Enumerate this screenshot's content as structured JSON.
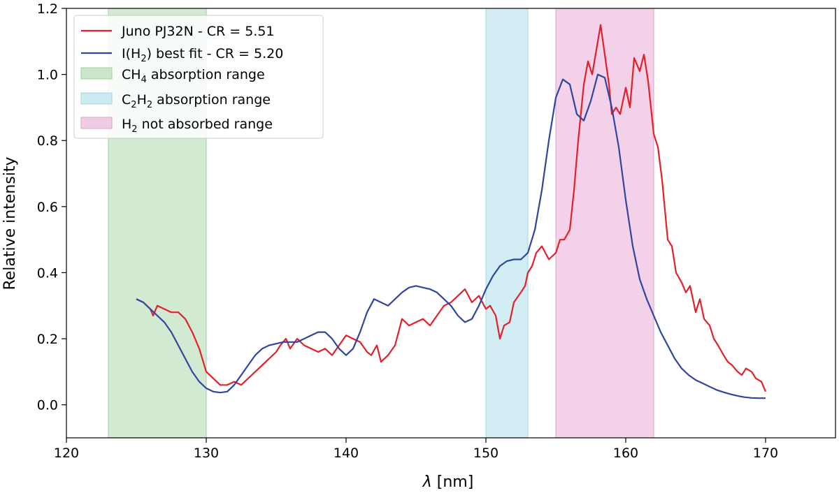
{
  "chart_data": {
    "type": "line",
    "xlabel_symbol": "λ",
    "xlabel_unit": "[nm]",
    "ylabel": "Relative intensity",
    "xlim": [
      120,
      175
    ],
    "ylim": [
      -0.1,
      1.2
    ],
    "xticks": [
      "120",
      "130",
      "140",
      "150",
      "160",
      "170"
    ],
    "yticks": [
      "0.0",
      "0.2",
      "0.4",
      "0.6",
      "0.8",
      "1.0",
      "1.2"
    ],
    "grid": false,
    "legend_position": "top-left",
    "spans": [
      {
        "name": "CH4 absorption range",
        "legend_main": "CH",
        "legend_sub": "4",
        "legend_rest": " absorption range",
        "x0": 123,
        "x1": 130,
        "color": "#bfe0bf",
        "edge": "#9fcf9f"
      },
      {
        "name": "C2H2 absorption range",
        "legend_main": "C",
        "legend_sub": "2",
        "legend_main2": "H",
        "legend_sub2": "2",
        "legend_rest": " absorption range",
        "x0": 150,
        "x1": 153,
        "color": "#bfe6ee",
        "edge": "#9fd6e4"
      },
      {
        "name": "H2 not absorbed range",
        "legend_main": "H",
        "legend_sub": "2",
        "legend_rest": " not absorbed range",
        "x0": 155,
        "x1": 162,
        "color": "#eebfdf",
        "edge": "#dea0c8"
      }
    ],
    "series": [
      {
        "name": "Juno PJ32N - CR =  5.51",
        "color": "#e3202a",
        "x": [
          125.0,
          125.5,
          126.0,
          126.2,
          126.5,
          127.0,
          127.5,
          128.0,
          128.5,
          129.0,
          129.5,
          130.0,
          130.5,
          131.0,
          131.5,
          132.0,
          132.5,
          133.0,
          133.5,
          134.0,
          134.5,
          135.0,
          135.3,
          135.7,
          136.0,
          136.5,
          137.0,
          137.5,
          138.0,
          138.5,
          139.0,
          139.5,
          140.0,
          140.5,
          141.0,
          141.5,
          141.8,
          142.2,
          142.5,
          143.0,
          143.5,
          144.0,
          144.5,
          145.0,
          145.5,
          146.0,
          146.5,
          147.0,
          147.5,
          148.0,
          148.5,
          149.0,
          149.5,
          150.0,
          150.3,
          150.7,
          151.0,
          151.3,
          151.7,
          152.0,
          152.5,
          152.8,
          153.0,
          153.3,
          153.6,
          154.0,
          154.5,
          155.0,
          155.3,
          155.6,
          156.0,
          156.3,
          156.6,
          157.0,
          157.3,
          157.6,
          158.0,
          158.2,
          158.5,
          158.8,
          159.0,
          159.3,
          159.6,
          160.0,
          160.3,
          160.6,
          161.0,
          161.3,
          161.6,
          162.0,
          162.3,
          162.6,
          163.0,
          163.3,
          163.6,
          164.0,
          164.3,
          164.6,
          165.0,
          165.3,
          165.6,
          166.0,
          166.3,
          166.6,
          167.0,
          167.3,
          167.6,
          168.0,
          168.3,
          168.6,
          169.0,
          169.3,
          169.7,
          170.0
        ],
        "y": [
          0.32,
          0.31,
          0.29,
          0.27,
          0.3,
          0.29,
          0.28,
          0.28,
          0.26,
          0.22,
          0.17,
          0.1,
          0.08,
          0.06,
          0.06,
          0.07,
          0.06,
          0.08,
          0.1,
          0.12,
          0.14,
          0.16,
          0.18,
          0.2,
          0.17,
          0.2,
          0.18,
          0.17,
          0.16,
          0.17,
          0.15,
          0.18,
          0.21,
          0.2,
          0.19,
          0.16,
          0.15,
          0.18,
          0.13,
          0.15,
          0.18,
          0.26,
          0.24,
          0.25,
          0.26,
          0.24,
          0.27,
          0.3,
          0.31,
          0.33,
          0.35,
          0.31,
          0.33,
          0.29,
          0.3,
          0.27,
          0.2,
          0.24,
          0.25,
          0.31,
          0.34,
          0.36,
          0.4,
          0.42,
          0.46,
          0.48,
          0.44,
          0.46,
          0.5,
          0.5,
          0.53,
          0.65,
          0.8,
          0.97,
          1.04,
          1.0,
          1.1,
          1.15,
          1.06,
          0.97,
          0.88,
          0.9,
          0.88,
          0.96,
          0.9,
          1.05,
          1.01,
          1.06,
          0.98,
          0.82,
          0.78,
          0.68,
          0.5,
          0.48,
          0.4,
          0.37,
          0.34,
          0.36,
          0.28,
          0.32,
          0.26,
          0.24,
          0.2,
          0.18,
          0.15,
          0.13,
          0.12,
          0.1,
          0.09,
          0.11,
          0.1,
          0.08,
          0.07,
          0.04
        ]
      },
      {
        "name": "I(H2) best fit - CR =  5.20",
        "legend_main": "I(H",
        "legend_sub": "2",
        "legend_rest": ") best fit - CR =  5.20",
        "color": "#2f45a0",
        "x": [
          125.0,
          125.5,
          126.0,
          126.5,
          127.0,
          127.5,
          128.0,
          128.5,
          129.0,
          129.5,
          130.0,
          130.5,
          131.0,
          131.5,
          132.0,
          132.5,
          133.0,
          133.5,
          134.0,
          134.5,
          135.0,
          135.5,
          136.0,
          136.5,
          137.0,
          137.5,
          138.0,
          138.5,
          139.0,
          139.5,
          140.0,
          140.5,
          141.0,
          141.5,
          142.0,
          142.5,
          143.0,
          143.5,
          144.0,
          144.5,
          145.0,
          145.5,
          146.0,
          146.5,
          147.0,
          147.5,
          148.0,
          148.5,
          149.0,
          149.5,
          150.0,
          150.5,
          151.0,
          151.5,
          152.0,
          152.5,
          153.0,
          153.5,
          154.0,
          154.5,
          155.0,
          155.5,
          156.0,
          156.5,
          157.0,
          157.5,
          158.0,
          158.5,
          159.0,
          159.5,
          160.0,
          160.5,
          161.0,
          161.5,
          162.0,
          162.5,
          163.0,
          163.5,
          164.0,
          164.5,
          165.0,
          165.5,
          166.0,
          166.5,
          167.0,
          167.5,
          168.0,
          168.5,
          169.0,
          169.5,
          170.0
        ],
        "y": [
          0.32,
          0.31,
          0.29,
          0.27,
          0.25,
          0.22,
          0.18,
          0.14,
          0.1,
          0.07,
          0.05,
          0.04,
          0.037,
          0.04,
          0.06,
          0.09,
          0.12,
          0.15,
          0.17,
          0.18,
          0.185,
          0.19,
          0.19,
          0.19,
          0.2,
          0.21,
          0.22,
          0.22,
          0.2,
          0.17,
          0.15,
          0.17,
          0.22,
          0.28,
          0.32,
          0.31,
          0.3,
          0.32,
          0.34,
          0.355,
          0.36,
          0.355,
          0.35,
          0.34,
          0.32,
          0.3,
          0.27,
          0.25,
          0.26,
          0.3,
          0.35,
          0.39,
          0.42,
          0.435,
          0.44,
          0.44,
          0.46,
          0.53,
          0.65,
          0.8,
          0.93,
          0.985,
          0.97,
          0.88,
          0.86,
          0.92,
          1.0,
          0.99,
          0.9,
          0.78,
          0.62,
          0.48,
          0.38,
          0.32,
          0.27,
          0.22,
          0.18,
          0.14,
          0.11,
          0.09,
          0.075,
          0.065,
          0.055,
          0.045,
          0.038,
          0.032,
          0.027,
          0.023,
          0.021,
          0.02,
          0.02
        ]
      }
    ],
    "legend_series_labels": [
      "Juno PJ32N - CR =  5.51"
    ]
  }
}
